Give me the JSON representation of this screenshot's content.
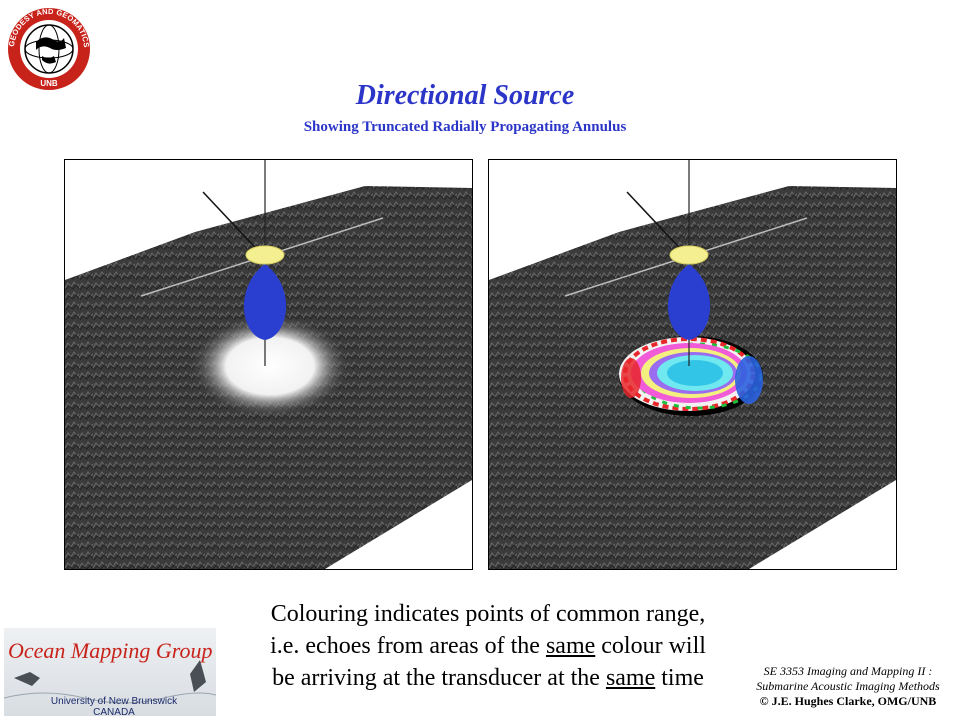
{
  "header": {
    "title": "Directional Source",
    "subtitle": "Showing Truncated Radially Propagating Annulus"
  },
  "logo": {
    "ring_text": "GEODESY AND GEOMATICS ENGINEERING",
    "bottom_text": "UNB",
    "color": "#c8231b"
  },
  "panels": {
    "left": {
      "shading": "white-ensonification"
    },
    "right": {
      "shading": "range-coloured-annulus"
    }
  },
  "caption": {
    "line1": "Colouring indicates points of common range,",
    "line2_pre": "i.e. echoes from areas of the ",
    "line2_u": "same",
    "line2_post": " colour will",
    "line3_pre": "be arriving at the transducer at the ",
    "line3_u": "same",
    "line3_post": " time"
  },
  "footer_left": {
    "group": "Ocean Mapping Group",
    "university": "University of New Brunswick",
    "country": "CANADA"
  },
  "footer_right": {
    "course": "SE 3353 Imaging and Mapping II :",
    "course_title": "Submarine Acoustic Imaging Methods",
    "copyright": "© J.E. Hughes Clarke, OMG/UNB"
  },
  "colors": {
    "title_blue": "#2b35c8",
    "seafloor": "#3a3a3a",
    "beam": "#2a3fd0",
    "transducer": "#f4ef90"
  }
}
